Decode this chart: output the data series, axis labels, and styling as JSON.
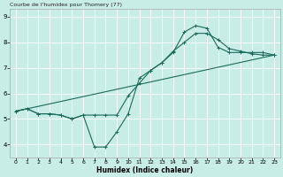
{
  "title": "Courbe de l'humidex pour Thomery (77)",
  "xlabel": "Humidex (Indice chaleur)",
  "xlim": [
    -0.5,
    23.5
  ],
  "ylim": [
    3.5,
    9.3
  ],
  "xticks": [
    0,
    1,
    2,
    3,
    4,
    5,
    6,
    7,
    8,
    9,
    10,
    11,
    12,
    13,
    14,
    15,
    16,
    17,
    18,
    19,
    20,
    21,
    22,
    23
  ],
  "yticks": [
    4,
    5,
    6,
    7,
    8,
    9
  ],
  "bg_color": "#c8ece6",
  "line_color": "#1a6b5a",
  "line1_x": [
    0,
    1,
    2,
    3,
    4,
    5,
    6,
    7,
    8,
    9,
    10,
    11,
    12,
    13,
    14,
    15,
    16,
    17,
    18,
    19,
    20,
    21,
    22,
    23
  ],
  "line1_y": [
    5.3,
    5.4,
    5.2,
    5.2,
    5.15,
    5.0,
    5.15,
    3.9,
    3.9,
    4.5,
    5.2,
    6.6,
    6.9,
    7.2,
    7.6,
    8.4,
    8.65,
    8.55,
    7.8,
    7.6,
    7.6,
    7.6,
    7.6,
    7.5
  ],
  "line2_x": [
    0,
    1,
    2,
    3,
    4,
    5,
    6,
    7,
    8,
    9,
    10,
    11,
    12,
    13,
    14,
    15,
    16,
    17,
    18,
    19,
    20,
    21,
    22,
    23
  ],
  "line2_y": [
    5.3,
    5.4,
    5.2,
    5.2,
    5.15,
    5.0,
    5.15,
    5.15,
    5.15,
    5.15,
    5.9,
    6.4,
    6.9,
    7.2,
    7.65,
    8.0,
    8.35,
    8.35,
    8.1,
    7.75,
    7.65,
    7.55,
    7.5,
    7.5
  ],
  "line3_x": [
    0,
    23
  ],
  "line3_y": [
    5.3,
    7.5
  ]
}
